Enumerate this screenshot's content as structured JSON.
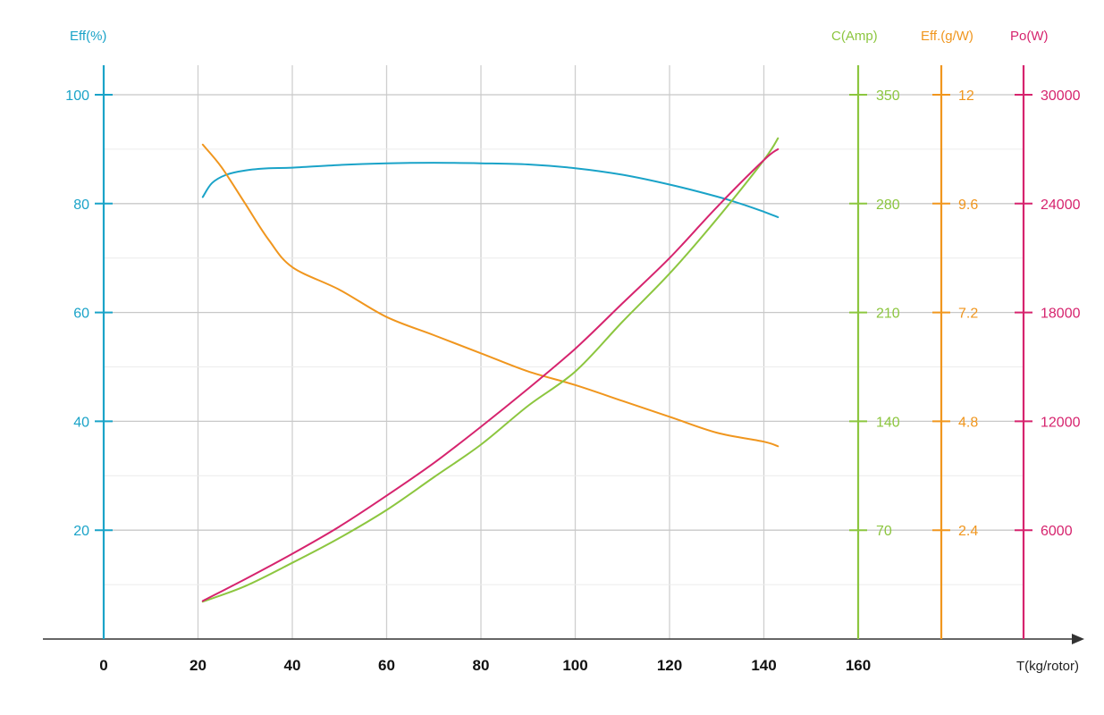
{
  "chart_data": {
    "type": "line",
    "xlabel": "T(kg/rotor)",
    "x_ticks": [
      "0",
      "20",
      "40",
      "60",
      "80",
      "100",
      "120",
      "140",
      "160"
    ],
    "xlim": [
      0,
      160
    ],
    "axes": [
      {
        "key": "eff",
        "title": "Eff(%)",
        "color": "#1aa3c8",
        "range": [
          0,
          100
        ],
        "ticks": [
          "20",
          "40",
          "60",
          "80",
          "100"
        ]
      },
      {
        "key": "amp",
        "title": "C(Amp)",
        "color": "#8cc63f",
        "range": [
          0,
          350
        ],
        "ticks": [
          "70",
          "140",
          "210",
          "280",
          "350"
        ]
      },
      {
        "key": "gw",
        "title": "Eff.(g/W)",
        "color": "#f0961e",
        "range": [
          0,
          12
        ],
        "ticks": [
          "2.4",
          "4.8",
          "7.2",
          "9.6",
          "12"
        ]
      },
      {
        "key": "po",
        "title": "Po(W)",
        "color": "#d6246e",
        "range": [
          0,
          30000
        ],
        "ticks": [
          "6000",
          "12000",
          "18000",
          "24000",
          "30000"
        ]
      }
    ],
    "series": [
      {
        "axis": "eff",
        "color": "#1aa3c8",
        "x": [
          21,
          23,
          26,
          30,
          35,
          40,
          50,
          60,
          70,
          80,
          90,
          100,
          110,
          120,
          130,
          135,
          140,
          143
        ],
        "y": [
          81.2,
          83.8,
          85.3,
          86.1,
          86.5,
          86.6,
          87.1,
          87.4,
          87.5,
          87.4,
          87.2,
          86.5,
          85.3,
          83.5,
          81.3,
          80.0,
          78.5,
          77.5
        ]
      },
      {
        "axis": "gw",
        "color": "#f0961e",
        "x": [
          21,
          25,
          30,
          35,
          40,
          50,
          60,
          70,
          80,
          90,
          100,
          110,
          120,
          130,
          140,
          143
        ],
        "y": [
          10.9,
          10.4,
          9.6,
          8.8,
          8.2,
          7.7,
          7.1,
          6.7,
          6.3,
          5.9,
          5.6,
          5.25,
          4.9,
          4.55,
          4.35,
          4.25
        ]
      },
      {
        "axis": "amp",
        "color": "#8cc63f",
        "x": [
          21,
          30,
          40,
          50,
          60,
          70,
          80,
          90,
          100,
          110,
          120,
          130,
          140,
          143
        ],
        "y": [
          24,
          34,
          49,
          65,
          83,
          104,
          125,
          150,
          172,
          204,
          235,
          270,
          308,
          322
        ]
      },
      {
        "axis": "po",
        "color": "#d6246e",
        "x": [
          21,
          30,
          40,
          50,
          60,
          70,
          80,
          90,
          100,
          110,
          120,
          130,
          140,
          143
        ],
        "y": [
          2100,
          3300,
          4700,
          6200,
          7900,
          9700,
          11700,
          13800,
          16000,
          18500,
          21000,
          23800,
          26400,
          27000
        ]
      }
    ]
  }
}
